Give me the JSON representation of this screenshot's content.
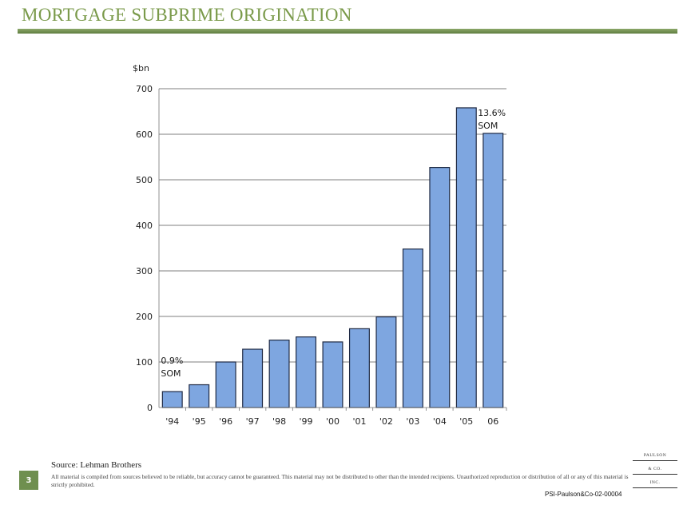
{
  "title": "MORTGAGE SUBPRIME ORIGINATION",
  "footer": {
    "page_number": "3",
    "source": "Source: Lehman Brothers",
    "disclaimer": "All material is compiled from sources believed to be reliable, but accuracy cannot be guaranteed. This material may not be distributed to other than the intended recipients. Unauthorized reproduction or distribution of all or any of this material is strictly prohibited.",
    "logo_lines": [
      "PAULSON",
      "& CO.",
      "INC."
    ],
    "doc_id": "PSI-Paulson&Co-02-00004"
  },
  "colors": {
    "title": "#7a9a4a",
    "rule": "#6f8f4f",
    "bar_fill": "#7ea6e0",
    "bar_stroke": "#1f2a44"
  },
  "chart_data": {
    "type": "bar",
    "title": "",
    "xlabel": "",
    "ylabel": "$bn",
    "ylim": [
      0,
      700
    ],
    "yticks": [
      0,
      100,
      200,
      300,
      400,
      500,
      600,
      700
    ],
    "grid": true,
    "categories": [
      "'94",
      "'95",
      "'96",
      "'97",
      "'98",
      "'99",
      "'00",
      "'01",
      "'02",
      "'03",
      "'04",
      "'05",
      "06"
    ],
    "values": [
      35,
      50,
      100,
      128,
      148,
      155,
      144,
      173,
      199,
      348,
      527,
      658,
      602
    ],
    "annotations": [
      {
        "category": "'94",
        "lines": [
          "0.9%",
          "SOM"
        ]
      },
      {
        "category": "'05",
        "lines": [
          "13.6%",
          "SOM"
        ]
      }
    ]
  }
}
